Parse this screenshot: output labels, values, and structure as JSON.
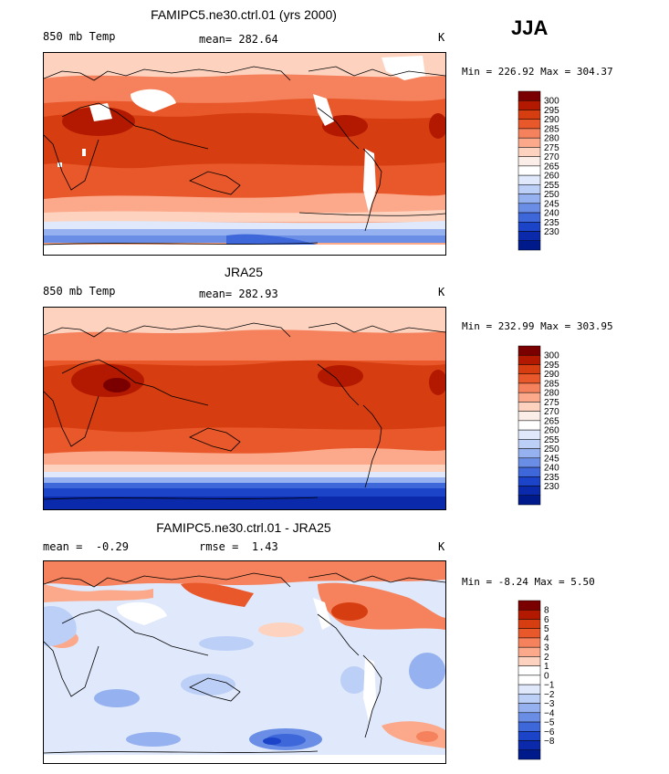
{
  "season": "JJA",
  "panels": [
    {
      "title": "FAMIPC5.ne30.ctrl.01 (yrs 2000)",
      "left_label": "850 mb Temp",
      "stat_label": "mean=",
      "stat_value": "282.64",
      "unit": "K",
      "min_label": "Min =",
      "min_value": "226.92",
      "max_label": "Max =",
      "max_value": "304.37",
      "colorbar_levels": [
        "300",
        "295",
        "290",
        "285",
        "280",
        "275",
        "270",
        "265",
        "260",
        "255",
        "250",
        "245",
        "240",
        "235",
        "230"
      ]
    },
    {
      "title": "JRA25",
      "left_label": "850 mb Temp",
      "stat_label": "mean=",
      "stat_value": "282.93",
      "unit": "K",
      "min_label": "Min =",
      "min_value": "232.99",
      "max_label": "Max =",
      "max_value": "303.95",
      "colorbar_levels": [
        "300",
        "295",
        "290",
        "285",
        "280",
        "275",
        "270",
        "265",
        "260",
        "255",
        "250",
        "245",
        "240",
        "235",
        "230"
      ]
    },
    {
      "title": "FAMIPC5.ne30.ctrl.01 - JRA25",
      "left_label": "mean =",
      "left_value": "-0.29",
      "stat_label": "rmse =",
      "stat_value": "1.43",
      "unit": "K",
      "min_label": "Min =",
      "min_value": "-8.24",
      "max_label": "Max =",
      "max_value": "5.50",
      "colorbar_levels": [
        "8",
        "6",
        "5",
        "4",
        "3",
        "2",
        "1",
        "0",
        "-1",
        "-2",
        "-3",
        "-4",
        "-5",
        "-6",
        "-8"
      ]
    }
  ],
  "colors": {
    "temperature_scale": [
      "#7a0000",
      "#b31900",
      "#d63d10",
      "#e8582a",
      "#f5825c",
      "#fba98a",
      "#fdd3c0",
      "#fbeee8",
      "#ffffff",
      "#dfe9fb",
      "#bccff7",
      "#95b1f0",
      "#6a8ee6",
      "#3e67da",
      "#1c44c8",
      "#0b2aab",
      "#001a8c"
    ],
    "difference_scale": [
      "#7a0000",
      "#b31900",
      "#d63d10",
      "#e8582a",
      "#f5825c",
      "#fba98a",
      "#fdd3c0",
      "#ffffff",
      "#ffffff",
      "#dfe9fb",
      "#bccff7",
      "#95b1f0",
      "#6a8ee6",
      "#3e67da",
      "#1c44c8",
      "#0b2aab",
      "#001a8c"
    ],
    "missing": "#ffffff",
    "coastline": "#000000"
  }
}
